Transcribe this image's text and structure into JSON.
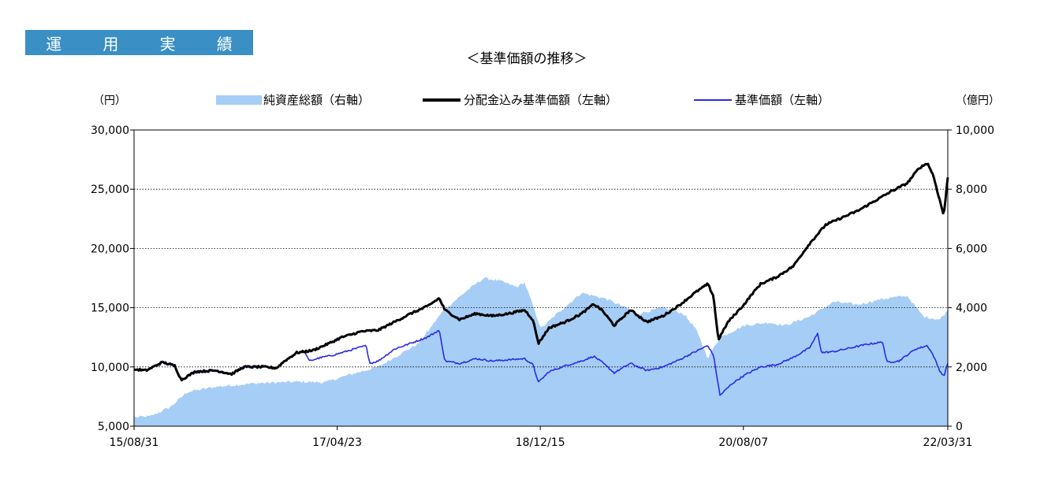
{
  "section_tab": [
    "運",
    "用",
    "実",
    "績"
  ],
  "chart_data": {
    "type": "line",
    "title": "＜基準価額の推移＞",
    "left_axis_unit": "（円）",
    "right_axis_unit": "（億円）",
    "y_left": {
      "min": 5000,
      "max": 30000,
      "ticks": [
        "5,000",
        "10,000",
        "15,000",
        "20,000",
        "25,000",
        "30,000"
      ],
      "tick_values": [
        5000,
        10000,
        15000,
        20000,
        25000,
        30000
      ]
    },
    "y_right": {
      "min": 0,
      "max": 10000,
      "ticks": [
        "0",
        "2,000",
        "4,000",
        "6,000",
        "8,000",
        "10,000"
      ],
      "tick_values": [
        0,
        2000,
        4000,
        6000,
        8000,
        10000
      ]
    },
    "x_ticks": [
      {
        "label": "15/08/31",
        "t": 0
      },
      {
        "label": "17/04/23",
        "t": 0.2496
      },
      {
        "label": "18/12/15",
        "t": 0.4992
      },
      {
        "label": "20/08/07",
        "t": 0.7488
      },
      {
        "label": "22/03/31",
        "t": 1
      }
    ],
    "grid": true,
    "legend_position": "top",
    "series": [
      {
        "name": "純資産総額（右軸）",
        "axis": "right",
        "kind": "area",
        "color": "#a6cdf5",
        "points": [
          [
            0,
            300
          ],
          [
            0.02,
            330
          ],
          [
            0.045,
            650
          ],
          [
            0.065,
            1150
          ],
          [
            0.1,
            1330
          ],
          [
            0.15,
            1450
          ],
          [
            0.2,
            1500
          ],
          [
            0.235,
            1480
          ],
          [
            0.26,
            1700
          ],
          [
            0.3,
            2000
          ],
          [
            0.35,
            2800
          ],
          [
            0.38,
            3900
          ],
          [
            0.41,
            4600
          ],
          [
            0.43,
            5000
          ],
          [
            0.45,
            4900
          ],
          [
            0.47,
            4700
          ],
          [
            0.48,
            4850
          ],
          [
            0.5,
            3300
          ],
          [
            0.52,
            3800
          ],
          [
            0.55,
            4500
          ],
          [
            0.58,
            4300
          ],
          [
            0.62,
            3800
          ],
          [
            0.65,
            4000
          ],
          [
            0.675,
            3800
          ],
          [
            0.69,
            3300
          ],
          [
            0.705,
            2300
          ],
          [
            0.72,
            3000
          ],
          [
            0.75,
            3400
          ],
          [
            0.78,
            3500
          ],
          [
            0.8,
            3400
          ],
          [
            0.83,
            3700
          ],
          [
            0.86,
            4200
          ],
          [
            0.89,
            4100
          ],
          [
            0.92,
            4300
          ],
          [
            0.95,
            4400
          ],
          [
            0.97,
            3700
          ],
          [
            0.99,
            3600
          ],
          [
            1,
            3900
          ]
        ]
      },
      {
        "name": "分配金込み基準価額（左軸）",
        "axis": "left",
        "kind": "line",
        "color": "#000000",
        "width": 3,
        "points": [
          [
            0,
            9800
          ],
          [
            0.015,
            9700
          ],
          [
            0.035,
            10400
          ],
          [
            0.05,
            10100
          ],
          [
            0.058,
            8900
          ],
          [
            0.075,
            9600
          ],
          [
            0.1,
            9700
          ],
          [
            0.12,
            9400
          ],
          [
            0.135,
            10000
          ],
          [
            0.16,
            10000
          ],
          [
            0.175,
            9900
          ],
          [
            0.185,
            10500
          ],
          [
            0.2,
            11200
          ],
          [
            0.22,
            11400
          ],
          [
            0.24,
            12000
          ],
          [
            0.255,
            12500
          ],
          [
            0.28,
            13000
          ],
          [
            0.3,
            13100
          ],
          [
            0.32,
            13800
          ],
          [
            0.34,
            14500
          ],
          [
            0.36,
            15100
          ],
          [
            0.375,
            15800
          ],
          [
            0.382,
            14800
          ],
          [
            0.4,
            14000
          ],
          [
            0.42,
            14500
          ],
          [
            0.44,
            14300
          ],
          [
            0.46,
            14500
          ],
          [
            0.48,
            14800
          ],
          [
            0.49,
            14000
          ],
          [
            0.497,
            12000
          ],
          [
            0.51,
            13300
          ],
          [
            0.53,
            13800
          ],
          [
            0.55,
            14500
          ],
          [
            0.565,
            15300
          ],
          [
            0.575,
            14800
          ],
          [
            0.59,
            13500
          ],
          [
            0.61,
            14800
          ],
          [
            0.63,
            13800
          ],
          [
            0.65,
            14300
          ],
          [
            0.67,
            15200
          ],
          [
            0.69,
            16300
          ],
          [
            0.705,
            17000
          ],
          [
            0.712,
            16000
          ],
          [
            0.718,
            12300
          ],
          [
            0.73,
            13800
          ],
          [
            0.75,
            15300
          ],
          [
            0.76,
            16200
          ],
          [
            0.77,
            17000
          ],
          [
            0.79,
            17600
          ],
          [
            0.81,
            18500
          ],
          [
            0.83,
            20400
          ],
          [
            0.85,
            22000
          ],
          [
            0.87,
            22600
          ],
          [
            0.89,
            23200
          ],
          [
            0.91,
            24000
          ],
          [
            0.93,
            24800
          ],
          [
            0.95,
            25500
          ],
          [
            0.965,
            26800
          ],
          [
            0.975,
            27200
          ],
          [
            0.982,
            26200
          ],
          [
            0.99,
            24100
          ],
          [
            0.995,
            22800
          ],
          [
            1,
            26000
          ]
        ]
      },
      {
        "name": "基準価額（左軸）",
        "axis": "left",
        "kind": "line",
        "color": "#2a2ae8",
        "width": 1.6,
        "points": [
          [
            0,
            9800
          ],
          [
            0.015,
            9700
          ],
          [
            0.035,
            10400
          ],
          [
            0.05,
            10100
          ],
          [
            0.058,
            8900
          ],
          [
            0.075,
            9600
          ],
          [
            0.1,
            9700
          ],
          [
            0.12,
            9400
          ],
          [
            0.135,
            10000
          ],
          [
            0.16,
            10000
          ],
          [
            0.175,
            9900
          ],
          [
            0.185,
            10500
          ],
          [
            0.2,
            11200
          ],
          [
            0.21,
            11300
          ],
          [
            0.215,
            10500
          ],
          [
            0.23,
            10800
          ],
          [
            0.245,
            11000
          ],
          [
            0.255,
            11200
          ],
          [
            0.27,
            11500
          ],
          [
            0.285,
            11800
          ],
          [
            0.29,
            10300
          ],
          [
            0.3,
            10500
          ],
          [
            0.32,
            11500
          ],
          [
            0.34,
            12000
          ],
          [
            0.36,
            12500
          ],
          [
            0.375,
            13100
          ],
          [
            0.382,
            10500
          ],
          [
            0.4,
            10300
          ],
          [
            0.42,
            10700
          ],
          [
            0.44,
            10500
          ],
          [
            0.46,
            10600
          ],
          [
            0.48,
            10700
          ],
          [
            0.49,
            10200
          ],
          [
            0.497,
            8700
          ],
          [
            0.51,
            9600
          ],
          [
            0.53,
            10100
          ],
          [
            0.55,
            10500
          ],
          [
            0.565,
            10900
          ],
          [
            0.575,
            10400
          ],
          [
            0.59,
            9500
          ],
          [
            0.61,
            10300
          ],
          [
            0.63,
            9700
          ],
          [
            0.65,
            10000
          ],
          [
            0.67,
            10600
          ],
          [
            0.69,
            11300
          ],
          [
            0.705,
            11800
          ],
          [
            0.712,
            11000
          ],
          [
            0.72,
            7600
          ],
          [
            0.735,
            8600
          ],
          [
            0.75,
            9300
          ],
          [
            0.77,
            10000
          ],
          [
            0.79,
            10200
          ],
          [
            0.81,
            10800
          ],
          [
            0.83,
            11600
          ],
          [
            0.84,
            12800
          ],
          [
            0.845,
            11200
          ],
          [
            0.86,
            11300
          ],
          [
            0.88,
            11600
          ],
          [
            0.9,
            11900
          ],
          [
            0.92,
            12100
          ],
          [
            0.925,
            10400
          ],
          [
            0.94,
            10500
          ],
          [
            0.96,
            11500
          ],
          [
            0.975,
            11800
          ],
          [
            0.982,
            11000
          ],
          [
            0.99,
            9700
          ],
          [
            0.995,
            9200
          ],
          [
            1,
            10300
          ]
        ]
      }
    ]
  }
}
